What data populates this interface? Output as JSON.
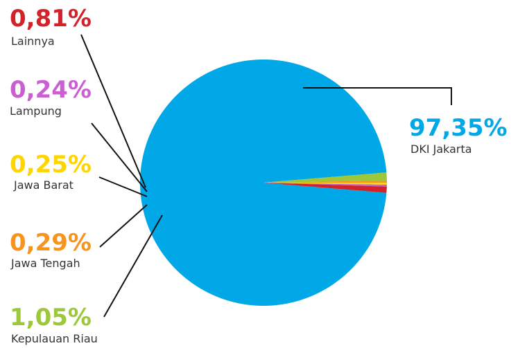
{
  "chart_data": {
    "type": "pie",
    "title": "",
    "slices": [
      {
        "label": "DKI Jakarta",
        "value": 97.35,
        "display": "97,35%",
        "color": "#00A8E8"
      },
      {
        "label": "Kepulauan Riau",
        "value": 1.05,
        "display": "1,05%",
        "color": "#9DC83B"
      },
      {
        "label": "Jawa Tengah",
        "value": 0.29,
        "display": "0,29%",
        "color": "#F7941D"
      },
      {
        "label": "Jawa Barat",
        "value": 0.25,
        "display": "0,25%",
        "color": "#FFD500"
      },
      {
        "label": "Lampung",
        "value": 0.24,
        "display": "0,24%",
        "color": "#C95FD1"
      },
      {
        "label": "Lainnya",
        "value": 0.81,
        "display": "0,81%",
        "color": "#D2232A"
      }
    ]
  }
}
